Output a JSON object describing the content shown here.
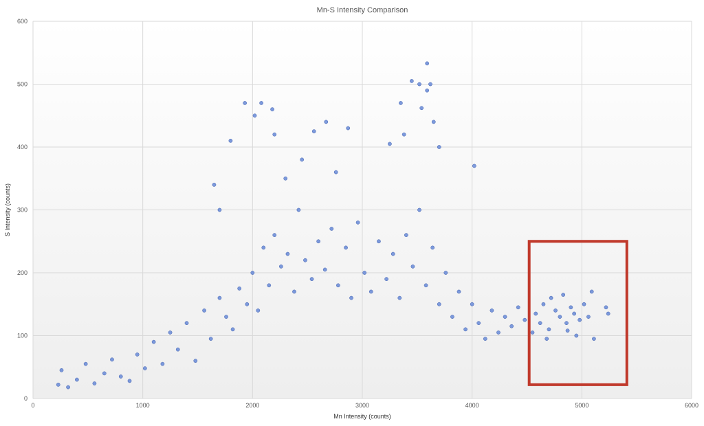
{
  "chart_data": {
    "type": "scatter",
    "title": "Mn-S Intensity Comparison",
    "xlabel": "Mn Intensity (counts)",
    "ylabel": "S Intensity (counts)",
    "xlim": [
      0,
      6000
    ],
    "ylim": [
      0,
      600
    ],
    "xticks": [
      0,
      1000,
      2000,
      3000,
      4000,
      5000,
      6000
    ],
    "yticks": [
      0,
      100,
      200,
      300,
      400,
      500,
      600
    ],
    "grid": true,
    "legend": "none",
    "colors": {
      "points": "#6f8fd8",
      "point_edge": "#3f5fae",
      "highlight": "#c0392b"
    },
    "series": [
      {
        "values_note_free": true,
        "points": [
          [
            230,
            22
          ],
          [
            260,
            45
          ],
          [
            320,
            18
          ],
          [
            400,
            30
          ],
          [
            480,
            55
          ],
          [
            560,
            24
          ],
          [
            650,
            40
          ],
          [
            720,
            62
          ],
          [
            800,
            35
          ],
          [
            880,
            28
          ],
          [
            950,
            70
          ],
          [
            1020,
            48
          ],
          [
            1100,
            90
          ],
          [
            1180,
            55
          ],
          [
            1250,
            105
          ],
          [
            1320,
            78
          ],
          [
            1400,
            120
          ],
          [
            1480,
            60
          ],
          [
            1560,
            140
          ],
          [
            1620,
            95
          ],
          [
            1700,
            160
          ],
          [
            1760,
            130
          ],
          [
            1820,
            110
          ],
          [
            1880,
            175
          ],
          [
            1950,
            150
          ],
          [
            2000,
            200
          ],
          [
            2050,
            140
          ],
          [
            2100,
            240
          ],
          [
            2150,
            180
          ],
          [
            2200,
            260
          ],
          [
            2260,
            210
          ],
          [
            2320,
            230
          ],
          [
            2380,
            170
          ],
          [
            2420,
            300
          ],
          [
            2480,
            220
          ],
          [
            2540,
            190
          ],
          [
            2600,
            250
          ],
          [
            2660,
            205
          ],
          [
            2720,
            270
          ],
          [
            2780,
            180
          ],
          [
            2850,
            240
          ],
          [
            2900,
            160
          ],
          [
            2960,
            280
          ],
          [
            3020,
            200
          ],
          [
            3080,
            170
          ],
          [
            3150,
            250
          ],
          [
            3220,
            190
          ],
          [
            3280,
            230
          ],
          [
            3340,
            160
          ],
          [
            3400,
            260
          ],
          [
            3460,
            210
          ],
          [
            3520,
            300
          ],
          [
            3580,
            180
          ],
          [
            3640,
            240
          ],
          [
            3700,
            150
          ],
          [
            3760,
            200
          ],
          [
            3820,
            130
          ],
          [
            3880,
            170
          ],
          [
            3940,
            110
          ],
          [
            4000,
            150
          ],
          [
            4060,
            120
          ],
          [
            4120,
            95
          ],
          [
            4180,
            140
          ],
          [
            4240,
            105
          ],
          [
            4300,
            130
          ],
          [
            4360,
            115
          ],
          [
            4420,
            145
          ],
          [
            4480,
            125
          ],
          [
            1930,
            470
          ],
          [
            2080,
            470
          ],
          [
            2180,
            460
          ],
          [
            2020,
            450
          ],
          [
            2560,
            425
          ],
          [
            2670,
            440
          ],
          [
            2870,
            430
          ],
          [
            3350,
            470
          ],
          [
            3450,
            505
          ],
          [
            3520,
            500
          ],
          [
            3590,
            533
          ],
          [
            3590,
            490
          ],
          [
            3620,
            500
          ],
          [
            3540,
            462
          ],
          [
            3650,
            440
          ],
          [
            3700,
            400
          ],
          [
            4020,
            370
          ],
          [
            2450,
            380
          ],
          [
            1800,
            410
          ],
          [
            1650,
            340
          ],
          [
            1700,
            300
          ],
          [
            2200,
            420
          ],
          [
            3250,
            405
          ],
          [
            3380,
            420
          ],
          [
            2760,
            360
          ],
          [
            2300,
            350
          ],
          [
            4580,
            135
          ],
          [
            4620,
            120
          ],
          [
            4650,
            150
          ],
          [
            4700,
            110
          ],
          [
            4720,
            160
          ],
          [
            4760,
            140
          ],
          [
            4800,
            130
          ],
          [
            4830,
            165
          ],
          [
            4860,
            120
          ],
          [
            4900,
            145
          ],
          [
            4930,
            135
          ],
          [
            4950,
            100
          ],
          [
            4980,
            125
          ],
          [
            5020,
            150
          ],
          [
            5060,
            130
          ],
          [
            5090,
            170
          ],
          [
            5110,
            95
          ],
          [
            5220,
            145
          ],
          [
            5240,
            135
          ],
          [
            4550,
            105
          ],
          [
            4680,
            95
          ],
          [
            4870,
            108
          ]
        ]
      }
    ],
    "annotations": [
      {
        "type": "rectangle",
        "x_range": [
          4520,
          5410
        ],
        "y_range": [
          22,
          250
        ],
        "color": "#c0392b"
      }
    ]
  }
}
